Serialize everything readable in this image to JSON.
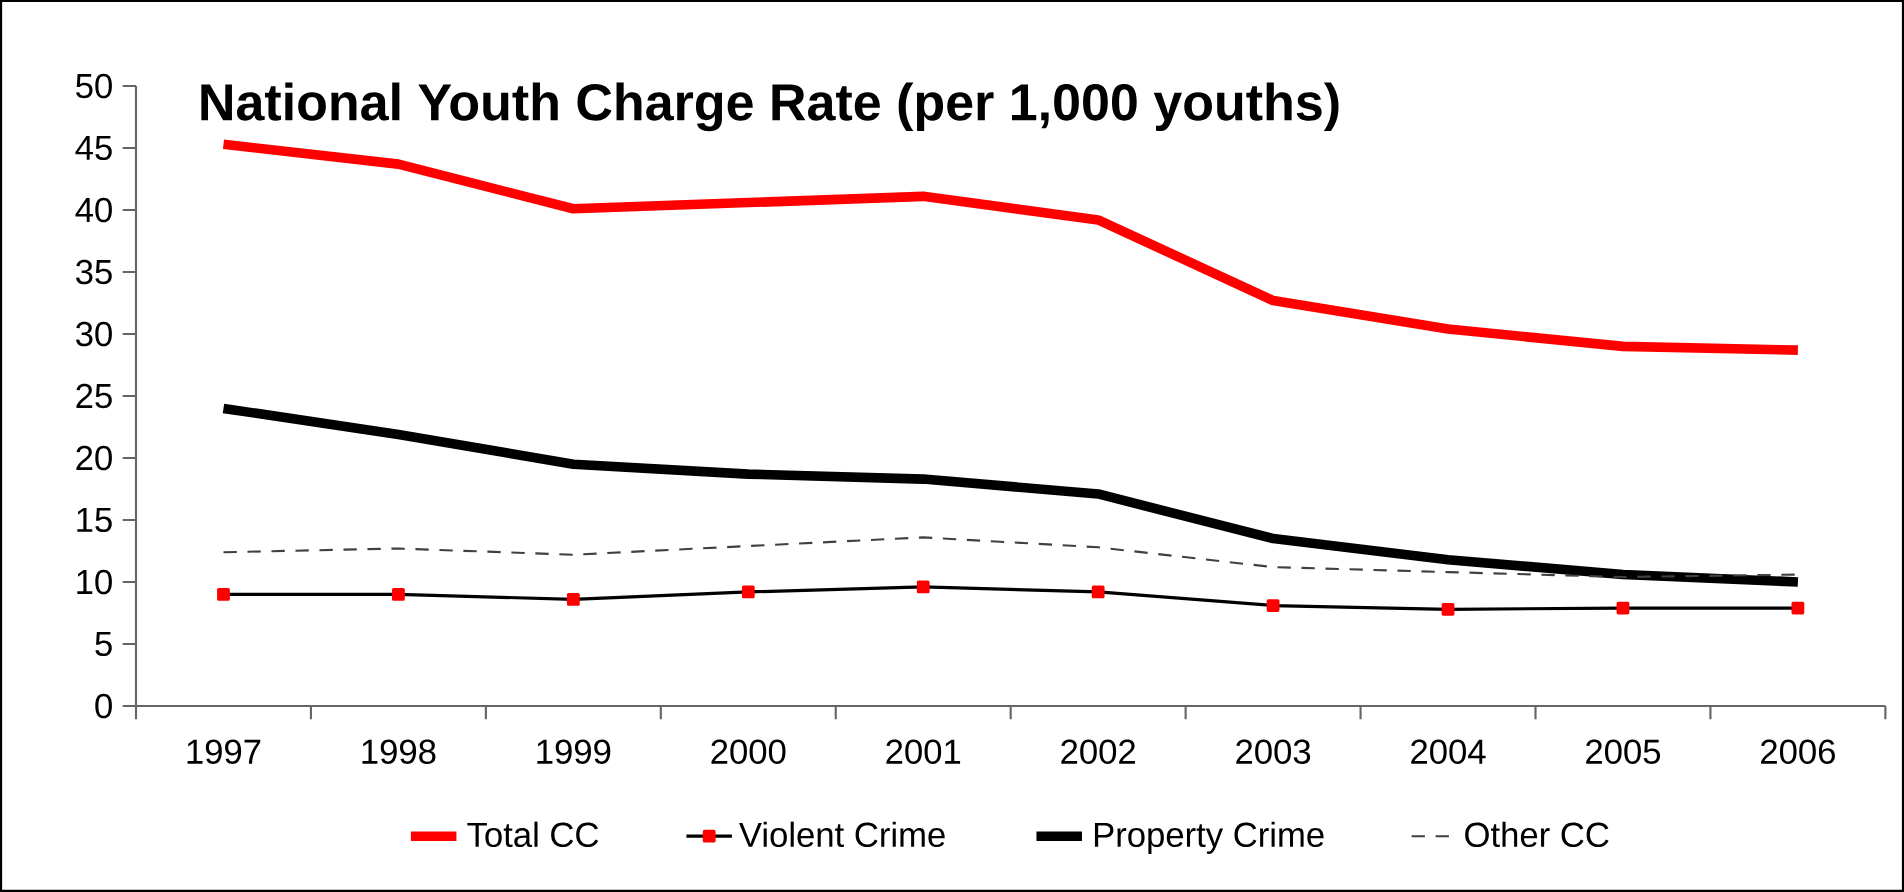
{
  "chart_data": {
    "type": "line",
    "title": "National Youth Charge Rate (per 1,000 youths)",
    "categories": [
      "1997",
      "1998",
      "1999",
      "2000",
      "2001",
      "2002",
      "2003",
      "2004",
      "2005",
      "2006"
    ],
    "series": [
      {
        "name": "Total CC",
        "color": "#ff0000",
        "line_style": "solid",
        "values": [
          45.3,
          43.7,
          40.1,
          40.6,
          41.1,
          39.2,
          32.7,
          30.4,
          29.0,
          28.7
        ]
      },
      {
        "name": "Violent Crime",
        "color": "#000000",
        "line_style": "solid",
        "marker": "square",
        "values": [
          9.0,
          9.0,
          8.6,
          9.2,
          9.6,
          9.2,
          8.1,
          7.8,
          7.9,
          7.9
        ]
      },
      {
        "name": "Property Crime",
        "color": "#000000",
        "line_style": "solid",
        "values": [
          24.0,
          21.9,
          19.5,
          18.7,
          18.3,
          17.1,
          13.5,
          11.8,
          10.6,
          10.0
        ]
      },
      {
        "name": "Other CC",
        "color": "#404040",
        "line_style": "dashed",
        "values": [
          12.4,
          12.7,
          12.2,
          12.9,
          13.6,
          12.8,
          11.2,
          10.8,
          10.4,
          10.6
        ]
      }
    ],
    "ylim": [
      0,
      50
    ],
    "yticks": [
      0,
      5,
      10,
      15,
      20,
      25,
      30,
      35,
      40,
      45,
      50
    ],
    "grid": false,
    "legend": "bottom"
  }
}
